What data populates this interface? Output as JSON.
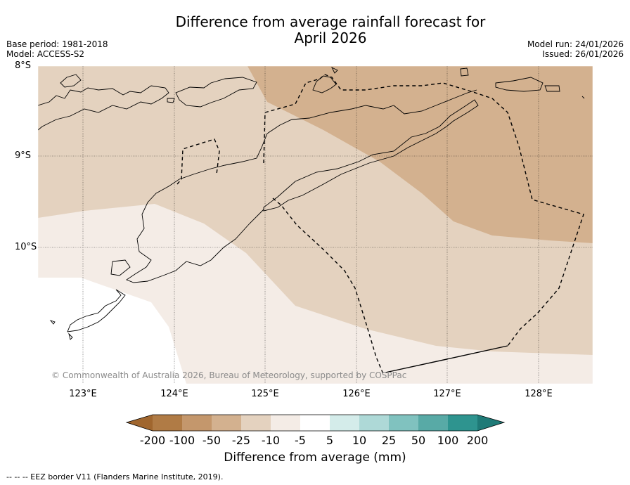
{
  "title_line1": "Difference from average rainfall forecast for",
  "title_line2": "April 2026",
  "meta_left": {
    "base_period": "Base period: 1981-2018",
    "model": "Model: ACCESS-S2"
  },
  "meta_right": {
    "model_run": "Model run: 24/01/2026",
    "issued": "Issued: 26/01/2026"
  },
  "map": {
    "lat_labels": [
      "8°S",
      "9°S",
      "10°S"
    ],
    "lon_labels": [
      "123°E",
      "124°E",
      "125°E",
      "126°E",
      "127°E",
      "128°E"
    ],
    "copyright": "© Commonwealth of Australia 2026, Bureau of Meteorology, supported by COSPPac"
  },
  "legend": {
    "labels": [
      "-200",
      "-100",
      "-50",
      "-25",
      "-10",
      "-5",
      "5",
      "10",
      "25",
      "50",
      "100",
      "200"
    ],
    "colors": [
      "#a0662e",
      "#b07b45",
      "#c4976c",
      "#d3b18f",
      "#e4d2bf",
      "#f4ece6",
      "#ffffff",
      "#d4ecea",
      "#aed9d7",
      "#80c2bf",
      "#58aaa6",
      "#2e948f",
      "#1f7a77"
    ],
    "title": "Difference from average (mm)"
  },
  "footer": "--  --  -- EEZ border V11 (Flanders Marine Institute, 2019)."
}
